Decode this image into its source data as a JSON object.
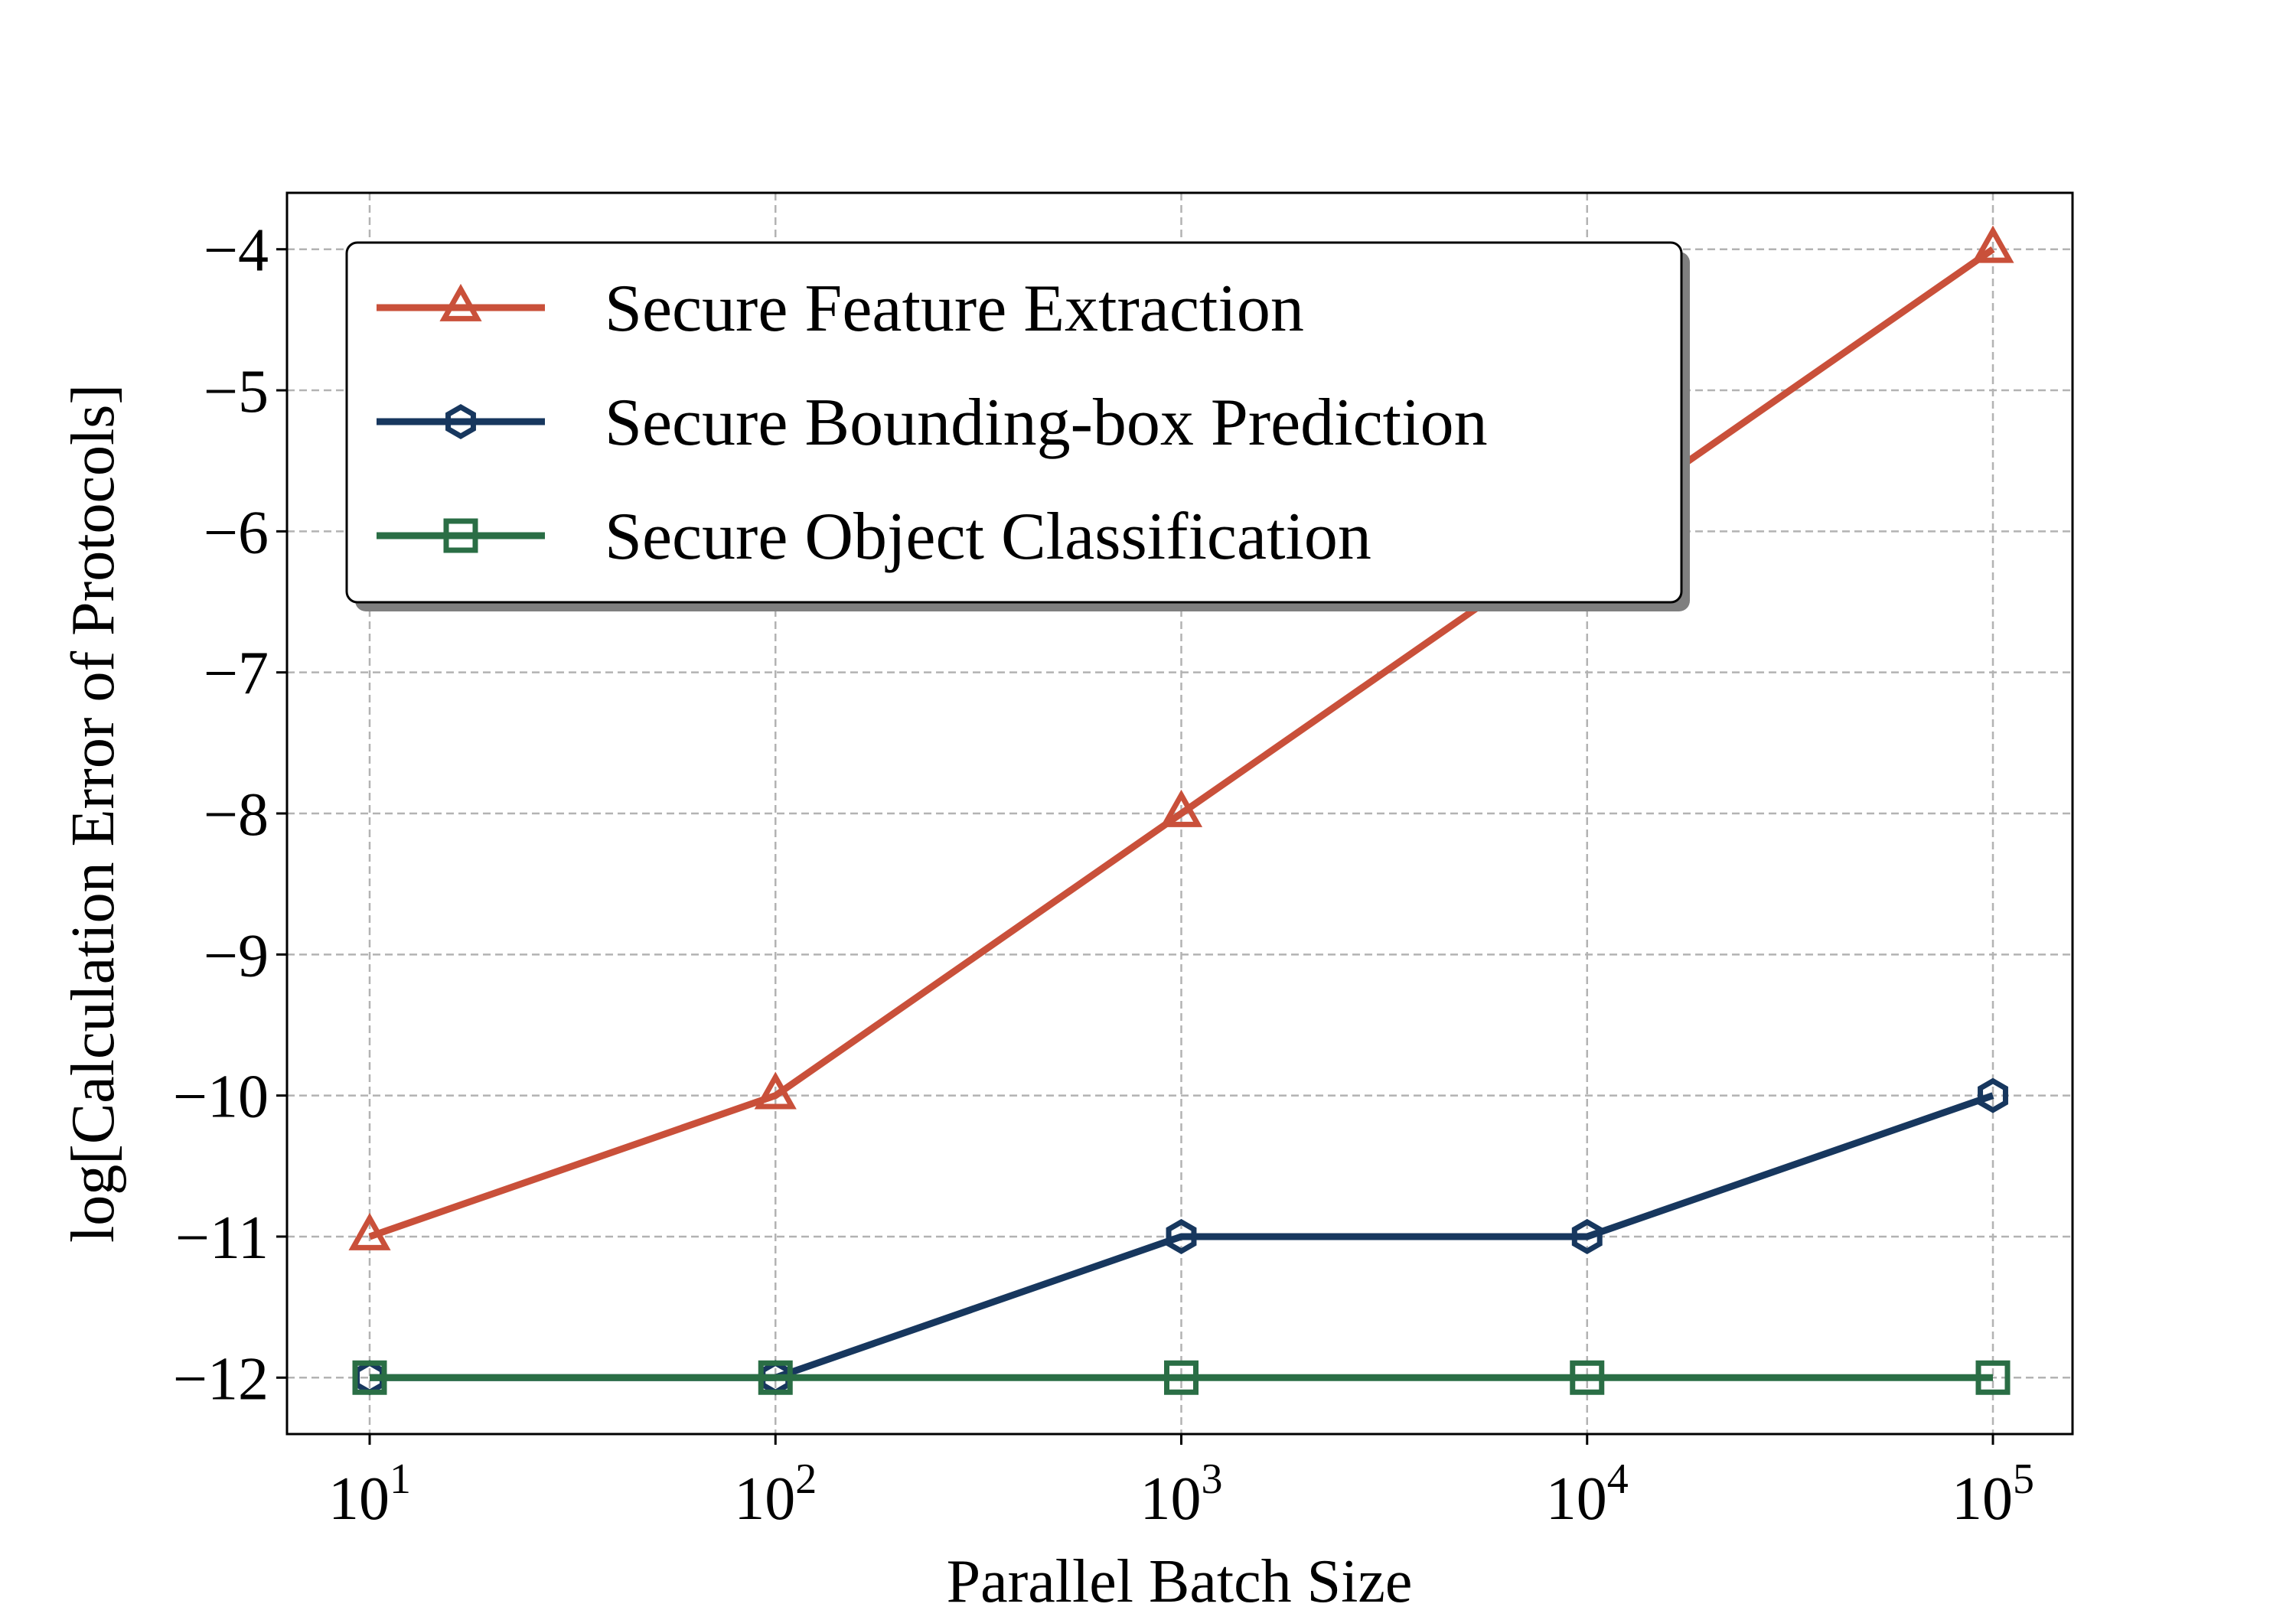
{
  "chart_data": {
    "type": "line",
    "xlabel": "Parallel Batch Size",
    "ylabel": "log[Calculation Error of Protocols]",
    "x_scale": "log",
    "x": [
      10,
      100,
      1000,
      10000,
      100000
    ],
    "x_tick_labels": [
      {
        "base": "10",
        "exp": "1"
      },
      {
        "base": "10",
        "exp": "2"
      },
      {
        "base": "10",
        "exp": "3"
      },
      {
        "base": "10",
        "exp": "4"
      },
      {
        "base": "10",
        "exp": "5"
      }
    ],
    "y_ticks": [
      -4,
      -5,
      -6,
      -7,
      -8,
      -9,
      -10,
      -11,
      -12
    ],
    "y_tick_labels": [
      "−4",
      "−5",
      "−6",
      "−7",
      "−8",
      "−9",
      "−10",
      "−11",
      "−12"
    ],
    "ylim": [
      -12.4,
      -3.6
    ],
    "grid": true,
    "legend_position": "upper-left",
    "series": [
      {
        "name": "Secure Feature Extraction",
        "values": [
          -11,
          -10,
          -8,
          -6,
          -4
        ],
        "color": "#c9503a",
        "marker": "triangle"
      },
      {
        "name": "Secure Bounding-box Prediction",
        "values": [
          -12,
          -12,
          -11,
          -11,
          -10
        ],
        "color": "#17375e",
        "marker": "hexagon"
      },
      {
        "name": "Secure Object Classification",
        "values": [
          -12,
          -12,
          -12,
          -12,
          -12
        ],
        "color": "#2a6e45",
        "marker": "square"
      }
    ]
  }
}
